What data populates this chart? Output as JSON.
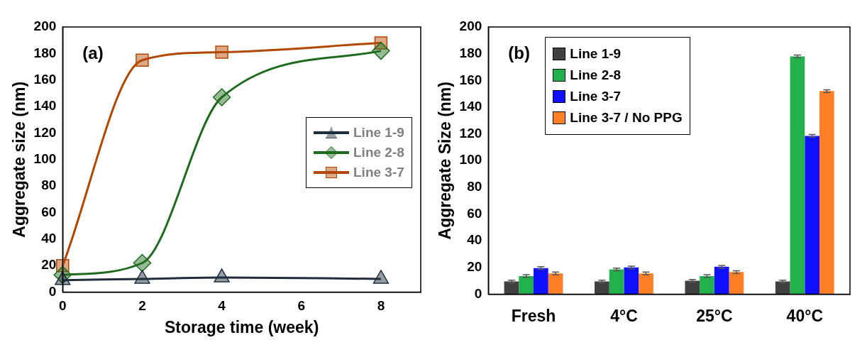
{
  "chart_data": [
    {
      "type": "line",
      "annotations": [
        "(a)"
      ],
      "xlabel": "Storage time (week)",
      "ylabel": "Aggregate size (nm)",
      "x": [
        0,
        2,
        4,
        8
      ],
      "xlim": [
        0,
        9
      ],
      "xticks": [
        0,
        2,
        4,
        6,
        8
      ],
      "ylim": [
        0,
        200
      ],
      "yticks": [
        0,
        20,
        40,
        60,
        80,
        100,
        120,
        140,
        160,
        180,
        200
      ],
      "grid": false,
      "legend": "right",
      "series": [
        {
          "name": "Line 1-9",
          "color": "#1f2d3d",
          "marker": "triangle",
          "values": [
            9,
            10,
            11,
            10
          ]
        },
        {
          "name": "Line 2-8",
          "color": "#1e6b1e",
          "marker": "diamond",
          "values": [
            13,
            22,
            147,
            182
          ]
        },
        {
          "name": "Line 3-7",
          "color": "#b34700",
          "marker": "square",
          "values": [
            20,
            175,
            181,
            188
          ]
        }
      ]
    },
    {
      "type": "bar",
      "annotations": [
        "(b)"
      ],
      "ylabel": "Aggregate Size (nm)",
      "categories": [
        "Fresh",
        "4°C",
        "25°C",
        "40°C"
      ],
      "ylim": [
        0,
        200
      ],
      "yticks": [
        0,
        20,
        40,
        60,
        80,
        100,
        120,
        140,
        160,
        180,
        200
      ],
      "grid": false,
      "legend": "top left",
      "series": [
        {
          "name": "Line 1-9",
          "color": "#404040",
          "values": [
            9.5,
            9.5,
            10,
            9.5
          ],
          "errors": [
            1,
            1,
            1,
            1
          ]
        },
        {
          "name": "Line 2-8",
          "color": "#22b14c",
          "values": [
            13.5,
            18.5,
            13.5,
            178
          ],
          "errors": [
            1,
            1,
            1,
            1
          ]
        },
        {
          "name": "Line 3-7",
          "color": "#1010ff",
          "values": [
            19.5,
            20,
            20.5,
            118.5
          ],
          "errors": [
            1,
            1,
            1,
            1
          ]
        },
        {
          "name": "Line 3-7 / No PPG",
          "color": "#ff7f27",
          "values": [
            15.5,
            15.5,
            16.5,
            152
          ],
          "errors": [
            1,
            1,
            1,
            1
          ]
        }
      ]
    }
  ]
}
